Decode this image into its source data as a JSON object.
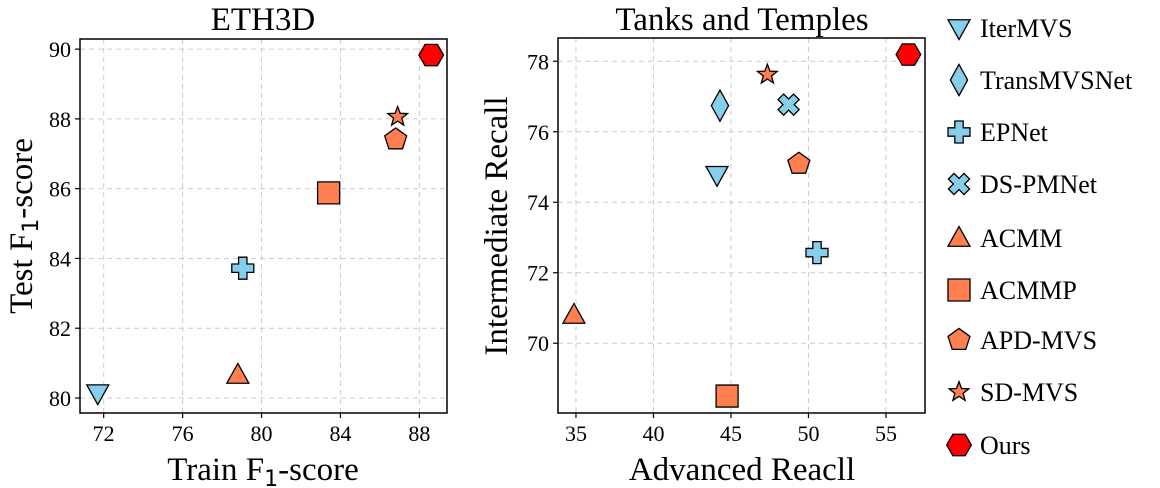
{
  "chart_data": [
    {
      "type": "scatter",
      "title": "ETH3D",
      "xlabel": {
        "main": "Train F",
        "sub": "1",
        "rest": "-score"
      },
      "ylabel": {
        "main": "Test F",
        "sub": "1",
        "rest": "-score"
      },
      "xlim": [
        70.8,
        89.4
      ],
      "ylim": [
        79.57,
        90.29
      ],
      "xticks": [
        72,
        76,
        80,
        84,
        88
      ],
      "yticks": [
        80,
        82,
        84,
        86,
        88,
        90
      ],
      "grid": true,
      "points": [
        {
          "method": "IterMVS",
          "x": 71.7,
          "y": 80.14
        },
        {
          "method": "EPNet",
          "x": 79.05,
          "y": 83.72
        },
        {
          "method": "ACMM",
          "x": 78.8,
          "y": 80.66
        },
        {
          "method": "ACMMP",
          "x": 83.4,
          "y": 85.88
        },
        {
          "method": "APD-MVS",
          "x": 86.8,
          "y": 87.41
        },
        {
          "method": "SD-MVS",
          "x": 86.9,
          "y": 88.06
        },
        {
          "method": "Ours",
          "x": 88.6,
          "y": 89.83
        }
      ]
    },
    {
      "type": "scatter",
      "title": "Tanks and Temples",
      "xlabel": {
        "main": "Advanced Reacll",
        "sub": "",
        "rest": ""
      },
      "ylabel": {
        "main": "Intermediate Recall",
        "sub": "",
        "rest": ""
      },
      "xlim": [
        33.84,
        57.52
      ],
      "ylim": [
        68.02,
        78.66
      ],
      "xticks": [
        35,
        40,
        45,
        50,
        55
      ],
      "yticks": [
        70,
        72,
        74,
        76,
        78
      ],
      "grid": true,
      "points": [
        {
          "method": "IterMVS",
          "x": 44.1,
          "y": 74.78
        },
        {
          "method": "TransMVSNet",
          "x": 44.29,
          "y": 76.74
        },
        {
          "method": "EPNet",
          "x": 50.55,
          "y": 72.57
        },
        {
          "method": "DS-PMNet",
          "x": 48.72,
          "y": 76.77
        },
        {
          "method": "ACMM",
          "x": 34.87,
          "y": 70.8
        },
        {
          "method": "ACMMP",
          "x": 44.75,
          "y": 68.5
        },
        {
          "method": "APD-MVS",
          "x": 49.38,
          "y": 75.09
        },
        {
          "method": "SD-MVS",
          "x": 47.35,
          "y": 77.62
        },
        {
          "method": "Ours",
          "x": 56.45,
          "y": 78.19
        }
      ]
    }
  ],
  "legend": {
    "placement": "right",
    "entries": [
      {
        "method": "IterMVS",
        "marker": "triangle-down",
        "color": "#87ceeb"
      },
      {
        "method": "TransMVSNet",
        "marker": "diamond",
        "color": "#87ceeb"
      },
      {
        "method": "EPNet",
        "marker": "plus",
        "color": "#87ceeb"
      },
      {
        "method": "DS-PMNet",
        "marker": "x",
        "color": "#87ceeb"
      },
      {
        "method": "ACMM",
        "marker": "triangle-up",
        "color": "#ff7f50"
      },
      {
        "method": "ACMMP",
        "marker": "square",
        "color": "#ff7f50"
      },
      {
        "method": "APD-MVS",
        "marker": "pentagon",
        "color": "#ff7f50"
      },
      {
        "method": "SD-MVS",
        "marker": "star",
        "color": "#ff7f50"
      },
      {
        "method": "Ours",
        "marker": "hexagon",
        "color": "#ff0000"
      }
    ]
  }
}
